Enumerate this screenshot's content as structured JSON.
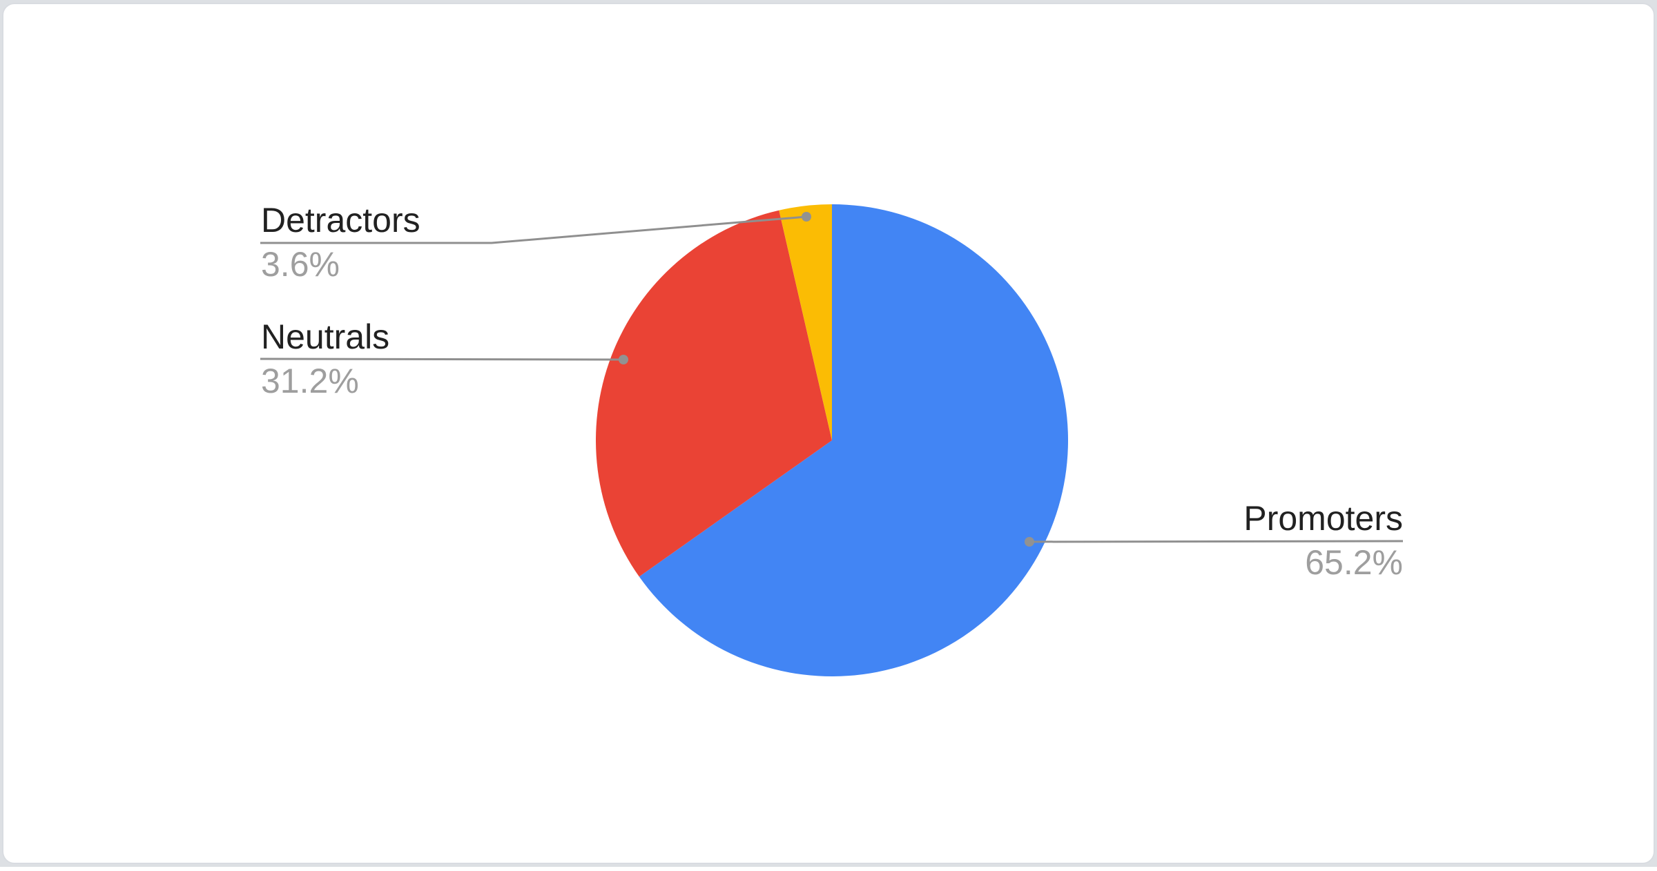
{
  "chart_data": {
    "type": "pie",
    "title": "",
    "slices": [
      {
        "label": "Promoters",
        "value": 65.2,
        "display": "65.2%",
        "color": "#4285f4"
      },
      {
        "label": "Neutrals",
        "value": 31.2,
        "display": "31.2%",
        "color": "#ea4335"
      },
      {
        "label": "Detractors",
        "value": 3.6,
        "display": "3.6%",
        "color": "#fbbc04"
      }
    ],
    "start_angle_deg": 0,
    "direction": "clockwise",
    "labels_style": "outside-callouts-with-percent",
    "legend_position": "none",
    "label_color": "#212121",
    "percent_color": "#9e9e9e",
    "leader_line_color": "#8f8f8f",
    "chart_background": "#ffffff"
  },
  "card": {
    "background": "#ffffff",
    "border_color": "#d9dce1"
  },
  "page_background": "#dde0e4"
}
